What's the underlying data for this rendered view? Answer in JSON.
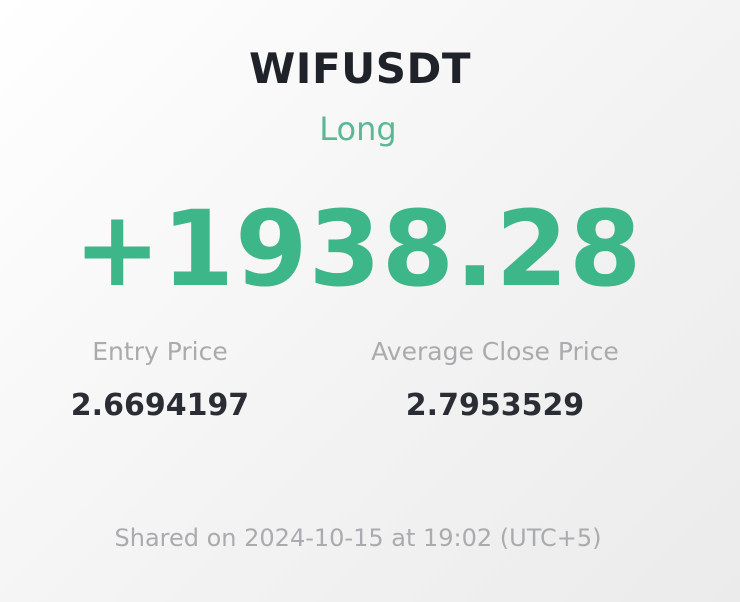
{
  "trade": {
    "symbol": "WIFUSDT",
    "side": "Long",
    "pnl": "+1938.28"
  },
  "metrics": {
    "entry_label": "Entry Price",
    "entry_value": "2.6694197",
    "close_label": "Average Close Price",
    "close_value": "2.7953529"
  },
  "footer": {
    "shared_text": "Shared on 2024-10-15 at 19:02 (UTC+5)"
  },
  "colors": {
    "profit": "#3db68a",
    "side": "#5bb894",
    "label": "#a9abae",
    "value": "#2a2d33"
  }
}
